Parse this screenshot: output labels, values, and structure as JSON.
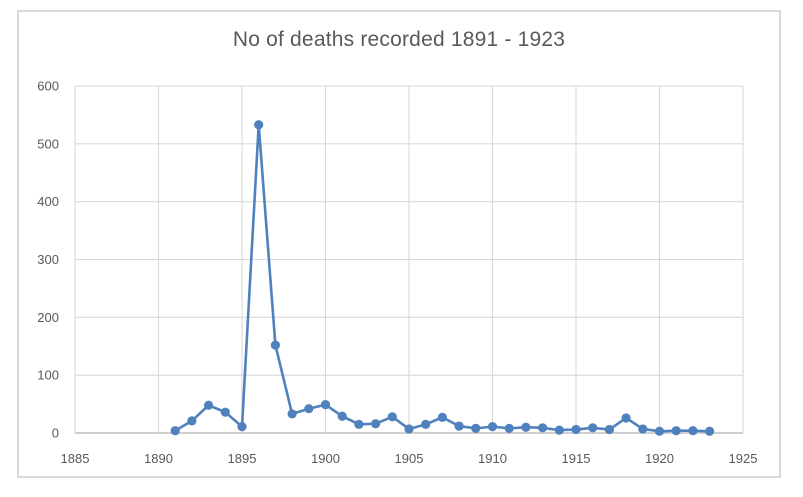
{
  "chart_data": {
    "type": "line",
    "title": "No of deaths recorded 1891 - 1923",
    "xlabel": "",
    "ylabel": "",
    "x": [
      1891,
      1892,
      1893,
      1894,
      1895,
      1896,
      1897,
      1898,
      1899,
      1900,
      1901,
      1902,
      1903,
      1904,
      1905,
      1906,
      1907,
      1908,
      1909,
      1910,
      1911,
      1912,
      1913,
      1914,
      1915,
      1916,
      1917,
      1918,
      1919,
      1920,
      1921,
      1922,
      1923
    ],
    "values": [
      4,
      21,
      48,
      36,
      11,
      533,
      152,
      33,
      42,
      49,
      29,
      15,
      16,
      28,
      7,
      15,
      27,
      12,
      8,
      11,
      8,
      10,
      9,
      5,
      6,
      9,
      6,
      26,
      7,
      3,
      4,
      4,
      3
    ],
    "xlim": [
      1885,
      1925
    ],
    "ylim": [
      0,
      600
    ],
    "x_tick_step": 5,
    "y_tick_step": 100,
    "x_tick_labels": [
      "1885",
      "1890",
      "1895",
      "1900",
      "1905",
      "1910",
      "1915",
      "1920",
      "1925"
    ],
    "y_tick_labels": [
      "0",
      "100",
      "200",
      "300",
      "400",
      "500",
      "600"
    ],
    "grid": true,
    "legend": false,
    "marker": "circle"
  },
  "colors": {
    "series": "#4F81BD",
    "gridline": "#D9D9D9",
    "axis_line": "#BFBFBF",
    "tick_text": "#595959",
    "title_text": "#595959",
    "chart_border": "#D9D9D9",
    "background": "#FFFFFF"
  }
}
